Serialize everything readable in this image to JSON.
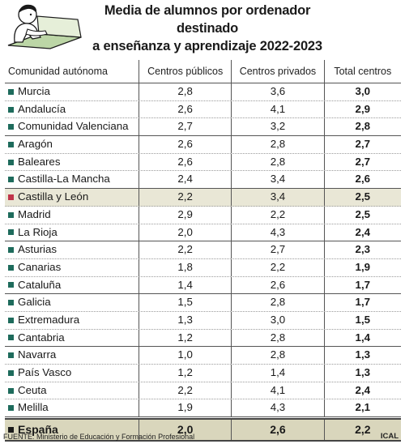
{
  "title": {
    "line1": "Media de alumnos por ordenador destinado",
    "line2": "a enseñanza y aprendizaje 2022-2023"
  },
  "icon": "student-at-computer-illustration",
  "colors": {
    "marker_default": "#1e6b5c",
    "marker_highlight": "#c0344a",
    "marker_total": "#1a1a1a",
    "highlight_row": "#e9e7d6",
    "total_row": "#d9d6bc"
  },
  "chart_data": {
    "type": "table",
    "columns": [
      "Comunidad autónoma",
      "Centros públicos",
      "Centros privados",
      "Total centros"
    ],
    "rows": [
      {
        "region": "Murcia",
        "publicos": "2,8",
        "privados": "3,6",
        "total": "3,0"
      },
      {
        "region": "Andalucía",
        "publicos": "2,6",
        "privados": "4,1",
        "total": "2,9"
      },
      {
        "region": "Comunidad Valenciana",
        "publicos": "2,7",
        "privados": "3,2",
        "total": "2,8"
      },
      {
        "region": "Aragón",
        "publicos": "2,6",
        "privados": "2,8",
        "total": "2,7"
      },
      {
        "region": "Baleares",
        "publicos": "2,6",
        "privados": "2,8",
        "total": "2,7"
      },
      {
        "region": "Castilla-La Mancha",
        "publicos": "2,4",
        "privados": "3,4",
        "total": "2,6"
      },
      {
        "region": "Castilla y León",
        "publicos": "2,2",
        "privados": "3,4",
        "total": "2,5"
      },
      {
        "region": "Madrid",
        "publicos": "2,9",
        "privados": "2,2",
        "total": "2,5"
      },
      {
        "region": "La Rioja",
        "publicos": "2,0",
        "privados": "4,3",
        "total": "2,4"
      },
      {
        "region": "Asturias",
        "publicos": "2,2",
        "privados": "2,7",
        "total": "2,3"
      },
      {
        "region": "Canarias",
        "publicos": "1,8",
        "privados": "2,2",
        "total": "1,9"
      },
      {
        "region": "Cataluña",
        "publicos": "1,4",
        "privados": "2,6",
        "total": "1,7"
      },
      {
        "region": "Galicia",
        "publicos": "1,5",
        "privados": "2,8",
        "total": "1,7"
      },
      {
        "region": "Extremadura",
        "publicos": "1,3",
        "privados": "3,0",
        "total": "1,5"
      },
      {
        "region": "Cantabria",
        "publicos": "1,2",
        "privados": "2,8",
        "total": "1,4"
      },
      {
        "region": "Navarra",
        "publicos": "1,0",
        "privados": "2,8",
        "total": "1,3"
      },
      {
        "region": "País Vasco",
        "publicos": "1,2",
        "privados": "1,4",
        "total": "1,3"
      },
      {
        "region": "Ceuta",
        "publicos": "2,2",
        "privados": "4,1",
        "total": "2,4"
      },
      {
        "region": "Melilla",
        "publicos": "1,9",
        "privados": "4,3",
        "total": "2,1"
      }
    ],
    "highlight_region": "Castilla y León",
    "group_breaks_after": [
      2,
      5,
      8,
      11,
      14
    ],
    "total_row": {
      "region": "España",
      "publicos": "2,0",
      "privados": "2,6",
      "total": "2,2"
    }
  },
  "footer": {
    "source": "FUENTE: Ministerio de Educación y Formación Profesional",
    "brand": "ICAL"
  }
}
